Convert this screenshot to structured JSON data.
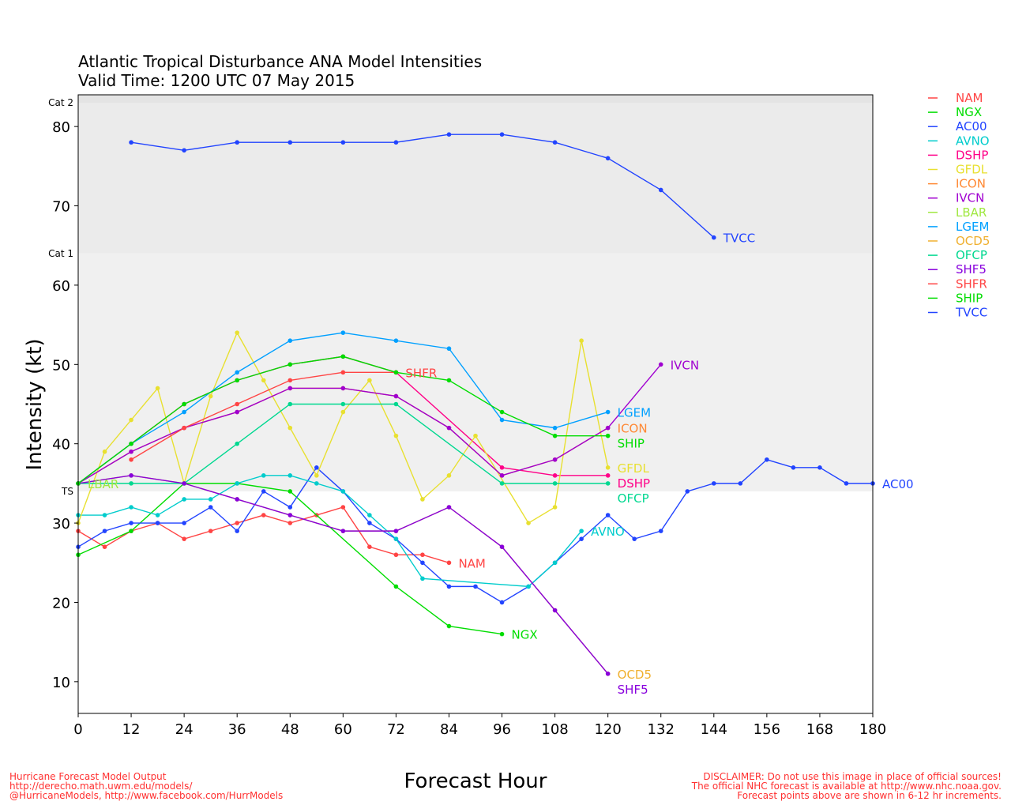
{
  "chart_data": {
    "type": "line",
    "title": "Atlantic Tropical Disturbance ANA Model Intensities",
    "subtitle": "Valid Time: 1200 UTC 07 May 2015",
    "xlabel": "Forecast Hour",
    "ylabel": "Intensity (kt)",
    "xlim": [
      0,
      180
    ],
    "ylim": [
      6,
      84
    ],
    "xticks": [
      0,
      12,
      24,
      36,
      48,
      60,
      72,
      84,
      96,
      108,
      120,
      132,
      144,
      156,
      168,
      180
    ],
    "yticks": [
      10,
      20,
      30,
      40,
      50,
      60,
      70,
      80
    ],
    "grid": false,
    "legend_position": "right",
    "bands": [
      {
        "label": "TS",
        "from": 34,
        "to": 64,
        "color": "#f0f0f0"
      },
      {
        "label": "Cat 1",
        "from": 64,
        "to": 83,
        "color": "#ebebeb"
      },
      {
        "label": "Cat 2",
        "from": 83,
        "to": 84,
        "color": "#e4e4e4"
      }
    ],
    "series": [
      {
        "name": "NAM",
        "color": "#ff4444",
        "x": [
          0,
          6,
          12,
          18,
          24,
          30,
          36,
          42,
          48,
          54,
          60,
          66,
          72,
          78,
          84
        ],
        "y": [
          29,
          27,
          29,
          30,
          28,
          29,
          30,
          31,
          30,
          31,
          32,
          27,
          26,
          26,
          25
        ]
      },
      {
        "name": "NGX",
        "color": "#00dd00",
        "x": [
          0,
          12,
          24,
          36,
          48,
          72,
          84,
          96
        ],
        "y": [
          26,
          29,
          35,
          35,
          34,
          22,
          17,
          16
        ]
      },
      {
        "name": "AC00",
        "color": "#2244ff",
        "x": [
          0,
          6,
          12,
          18,
          24,
          30,
          36,
          42,
          48,
          54,
          60,
          66,
          72,
          78,
          84,
          90,
          96,
          102,
          108,
          114,
          120,
          126,
          132,
          138,
          144,
          150,
          156,
          162,
          168,
          174,
          180
        ],
        "y": [
          27,
          29,
          30,
          30,
          30,
          32,
          29,
          34,
          32,
          37,
          34,
          30,
          28,
          25,
          22,
          22,
          20,
          22,
          25,
          28,
          31,
          28,
          29,
          34,
          35,
          35,
          38,
          37,
          37,
          35,
          35
        ]
      },
      {
        "name": "AVNO",
        "color": "#00cccc",
        "x": [
          0,
          6,
          12,
          18,
          24,
          30,
          36,
          42,
          48,
          54,
          60,
          66,
          72,
          78,
          102,
          108,
          114
        ],
        "y": [
          31,
          31,
          32,
          31,
          33,
          33,
          35,
          36,
          36,
          35,
          34,
          31,
          28,
          23,
          22,
          25,
          29
        ]
      },
      {
        "name": "DSHP",
        "color": "#ff0088",
        "x": [
          0,
          12,
          24,
          36,
          48,
          60,
          72,
          96,
          108,
          120
        ],
        "y": [
          35,
          40,
          45,
          48,
          50,
          51,
          49,
          37,
          36,
          36
        ]
      },
      {
        "name": "GFDL",
        "color": "#e8e030",
        "x": [
          0,
          6,
          12,
          18,
          24,
          30,
          36,
          42,
          48,
          54,
          60,
          66,
          72,
          78,
          84,
          90,
          102,
          108,
          114,
          120
        ],
        "y": [
          30,
          39,
          43,
          47,
          35,
          46,
          54,
          48,
          42,
          36,
          44,
          48,
          41,
          33,
          36,
          41,
          30,
          32,
          53,
          37
        ]
      },
      {
        "name": "ICON",
        "color": "#ff8833",
        "x": [
          0,
          12,
          24,
          36,
          48,
          60,
          72,
          84,
          96,
          108,
          120
        ],
        "y": [
          35,
          39,
          42,
          44,
          47,
          47,
          46,
          42,
          36,
          38,
          42
        ]
      },
      {
        "name": "IVCN",
        "color": "#a000d0",
        "x": [
          0,
          12,
          24,
          36,
          48,
          60,
          72,
          84,
          96,
          108,
          120,
          132
        ],
        "y": [
          35,
          39,
          42,
          44,
          47,
          47,
          46,
          42,
          36,
          38,
          42,
          50
        ]
      },
      {
        "name": "LBAR",
        "color": "#a0e840",
        "x": [
          0
        ],
        "y": [
          35
        ]
      },
      {
        "name": "LGEM",
        "color": "#00a0ff",
        "x": [
          0,
          12,
          24,
          36,
          48,
          60,
          72,
          84,
          96,
          108,
          120
        ],
        "y": [
          35,
          40,
          44,
          49,
          53,
          54,
          53,
          52,
          43,
          42,
          44
        ]
      },
      {
        "name": "OCD5",
        "color": "#f0b030",
        "x": [
          0,
          12,
          24,
          36,
          48,
          60,
          72,
          84,
          96,
          108,
          120
        ],
        "y": [
          35,
          36,
          35,
          33,
          31,
          29,
          29,
          32,
          27,
          19,
          11
        ]
      },
      {
        "name": "OFCP",
        "color": "#00d890",
        "x": [
          0,
          12,
          24,
          36,
          48,
          60,
          72,
          96,
          108,
          120
        ],
        "y": [
          35,
          35,
          35,
          40,
          45,
          45,
          45,
          35,
          35,
          35
        ]
      },
      {
        "name": "SHF5",
        "color": "#8800dd",
        "x": [
          0,
          12,
          24,
          36,
          48,
          60,
          72,
          84,
          96,
          108,
          120
        ],
        "y": [
          35,
          36,
          35,
          33,
          31,
          29,
          29,
          32,
          27,
          19,
          11
        ]
      },
      {
        "name": "SHFR",
        "color": "#ff4444",
        "x": [
          12,
          24,
          36,
          48,
          60,
          72
        ],
        "y": [
          38,
          42,
          45,
          48,
          49,
          49
        ]
      },
      {
        "name": "SHIP",
        "color": "#00dd00",
        "x": [
          0,
          12,
          24,
          36,
          48,
          60,
          72,
          84,
          96,
          108,
          120
        ],
        "y": [
          35,
          40,
          45,
          48,
          50,
          51,
          49,
          48,
          44,
          41,
          41
        ]
      },
      {
        "name": "TVCC",
        "color": "#2244ff",
        "x": [
          12,
          24,
          36,
          48,
          60,
          72,
          84,
          96,
          108,
          120,
          132,
          144
        ],
        "y": [
          78,
          77,
          78,
          78,
          78,
          78,
          79,
          79,
          78,
          76,
          72,
          66
        ]
      }
    ]
  },
  "footer_left": [
    "Hurricane Forecast Model Output",
    "http://derecho.math.uwm.edu/models/",
    "@HurricaneModels, http://www.facebook.com/HurrModels"
  ],
  "footer_right": [
    "DISCLAIMER: Do not use this image in place of official sources!",
    "The official NHC forecast is available at http://www.nhc.noaa.gov.",
    "Forecast points above are shown in 6-12 hr increments."
  ]
}
